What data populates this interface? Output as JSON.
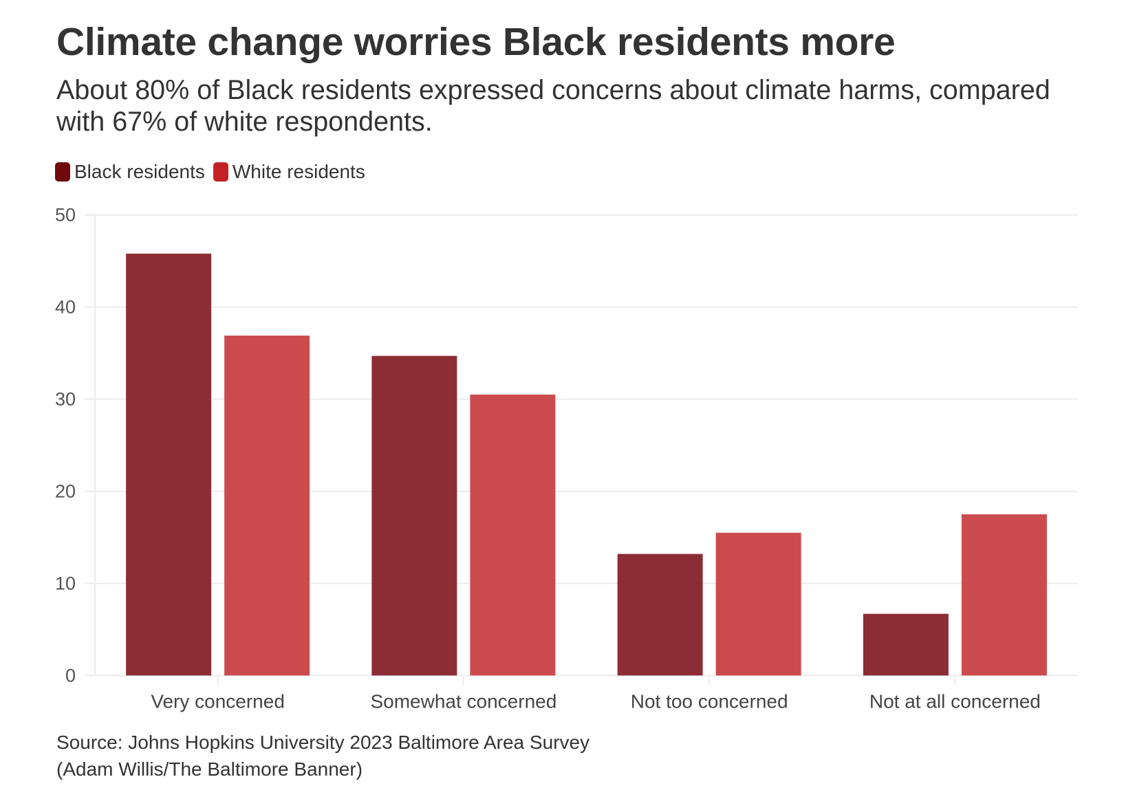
{
  "header": {
    "title": "Climate change worries Black residents more",
    "subtitle": "About 80% of Black residents expressed concerns about climate harms, compared with 67% of white respondents."
  },
  "legend": {
    "items": [
      {
        "label": "Black residents",
        "color": "#6e0a0e"
      },
      {
        "label": "White residents",
        "color": "#c42125"
      }
    ]
  },
  "footer": {
    "source": "Source: Johns Hopkins University 2023 Baltimore Area Survey",
    "credit": "(Adam Willis/The Baltimore Banner)"
  },
  "chart_data": {
    "type": "bar",
    "title": "Climate change worries Black residents more",
    "subtitle": "About 80% of Black residents expressed concerns about climate harms, compared with 67% of white respondents.",
    "xlabel": "",
    "ylabel": "",
    "categories": [
      "Very concerned",
      "Somewhat concerned",
      "Not too concerned",
      "Not at all concerned"
    ],
    "series": [
      {
        "name": "Black residents",
        "color": "#6e0a0e",
        "bar_color": "#8c2d35",
        "values": [
          45.8,
          34.7,
          13.2,
          6.7
        ]
      },
      {
        "name": "White residents",
        "color": "#c42125",
        "bar_color": "#cc4b4f",
        "values": [
          36.9,
          30.5,
          15.5,
          17.5
        ]
      }
    ],
    "ylim": [
      0,
      50
    ],
    "yticks": [
      0,
      10,
      20,
      30,
      40,
      50
    ],
    "grid": true,
    "legend_position": "top-left",
    "source": "Source: Johns Hopkins University 2023 Baltimore Area Survey"
  }
}
